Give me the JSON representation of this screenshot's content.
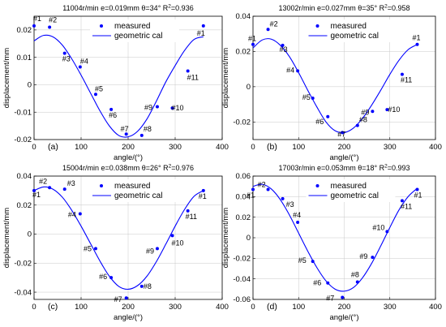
{
  "chart_data": [
    {
      "type": "scatter",
      "title": "11004r/min e=0.019mm θ=34° R",
      "title_sup": "2",
      "title_tail": "=0.936",
      "xlabel": "angle/(°)",
      "ylabel": "displacement/mm",
      "panel_label": "(a)",
      "xlim": [
        0,
        400
      ],
      "ylim": [
        -0.02,
        0.025
      ],
      "xticks": [
        0,
        100,
        200,
        300,
        400
      ],
      "yticks": [
        -0.02,
        -0.01,
        0,
        0.01,
        0.02
      ],
      "ytick_labels": [
        "-0.02",
        "-0.01",
        "0",
        "0.01",
        "0.02"
      ],
      "grid": true,
      "legend": {
        "position": "top-center",
        "entries": [
          "measured",
          "geometric cal"
        ]
      },
      "colors": {
        "series": "#0000ff"
      },
      "series": [
        {
          "name": "measured",
          "kind": "points",
          "labels": [
            "#1",
            "#2",
            "#3",
            "#4",
            "#5",
            "#6",
            "#7",
            "#8",
            "#9",
            "#10",
            "#11",
            "#1"
          ],
          "x": [
            0,
            33,
            65,
            98,
            131,
            164,
            196,
            229,
            262,
            294,
            327,
            360
          ],
          "y": [
            0.0215,
            0.021,
            0.0115,
            0.0065,
            -0.0035,
            -0.009,
            -0.018,
            -0.0185,
            -0.008,
            -0.0085,
            0.005,
            0.0215
          ]
        },
        {
          "name": "geometric cal",
          "kind": "curve",
          "x": [
            0,
            20,
            40,
            60,
            80,
            100,
            120,
            140,
            160,
            180,
            200,
            220,
            240,
            260,
            280,
            300,
            320,
            340,
            360
          ],
          "y": [
            0.016,
            0.018,
            0.0175,
            0.0145,
            0.0095,
            0.0035,
            -0.003,
            -0.0095,
            -0.015,
            -0.0185,
            -0.019,
            -0.017,
            -0.0125,
            -0.006,
            0.001,
            0.007,
            0.0125,
            0.0165,
            0.0175
          ]
        }
      ]
    },
    {
      "type": "scatter",
      "title": "13002r/min e=0.027mm θ=35° R",
      "title_sup": "2",
      "title_tail": "=0.958",
      "xlabel": "angle/(°)",
      "ylabel": "displacement/mm",
      "panel_label": "(b)",
      "xlim": [
        0,
        400
      ],
      "ylim": [
        -0.03,
        0.04
      ],
      "xticks": [
        0,
        100,
        200,
        300,
        400
      ],
      "yticks": [
        -0.02,
        0,
        0.02,
        0.04
      ],
      "ytick_labels": [
        "-0.02",
        "0",
        "0.02",
        "0.04"
      ],
      "grid": true,
      "legend": {
        "position": "top-center",
        "entries": [
          "measured",
          "geometric cal"
        ]
      },
      "colors": {
        "series": "#0000ff"
      },
      "series": [
        {
          "name": "measured",
          "kind": "points",
          "labels": [
            "#1",
            "#2",
            "#3",
            "#4",
            "#5",
            "#6",
            "#7",
            "#8",
            "#9",
            "#10",
            "#11",
            "#1"
          ],
          "x": [
            0,
            33,
            65,
            98,
            131,
            164,
            196,
            229,
            262,
            294,
            327,
            360
          ],
          "y": [
            0.024,
            0.0325,
            0.0235,
            0.009,
            -0.0065,
            -0.017,
            -0.026,
            -0.022,
            -0.014,
            -0.013,
            0.007,
            0.024
          ]
        },
        {
          "name": "geometric cal",
          "kind": "curve",
          "x": [
            0,
            20,
            40,
            60,
            80,
            100,
            120,
            140,
            160,
            180,
            200,
            220,
            240,
            260,
            280,
            300,
            320,
            340,
            360
          ],
          "y": [
            0.022,
            0.0265,
            0.027,
            0.0235,
            0.017,
            0.008,
            -0.002,
            -0.0115,
            -0.02,
            -0.025,
            -0.026,
            -0.0235,
            -0.018,
            -0.0105,
            -0.002,
            0.007,
            0.015,
            0.021,
            0.024
          ]
        }
      ]
    },
    {
      "type": "scatter",
      "title": "15004r/min e=0.038mm θ=26° R",
      "title_sup": "2",
      "title_tail": "=0.976",
      "xlabel": "angle/(°)",
      "ylabel": "displacement/mm",
      "panel_label": "(c)",
      "xlim": [
        0,
        400
      ],
      "ylim": [
        -0.045,
        0.04
      ],
      "xticks": [
        0,
        100,
        200,
        300,
        400
      ],
      "yticks": [
        -0.04,
        -0.02,
        0,
        0.02,
        0.04
      ],
      "ytick_labels": [
        "-0.04",
        "-0.02",
        "0",
        "0.02",
        "0.04"
      ],
      "grid": true,
      "legend": {
        "position": "top-center",
        "entries": [
          "measured",
          "geometric cal"
        ]
      },
      "colors": {
        "series": "#0000ff"
      },
      "series": [
        {
          "name": "measured",
          "kind": "points",
          "labels": [
            "#1",
            "#2",
            "#3",
            "#4",
            "#5",
            "#6",
            "#7",
            "#8",
            "#9",
            "#10",
            "#11",
            "#1"
          ],
          "x": [
            0,
            33,
            65,
            98,
            131,
            164,
            196,
            229,
            262,
            294,
            327,
            360
          ],
          "y": [
            0.03,
            0.032,
            0.031,
            0.014,
            -0.01,
            -0.03,
            -0.044,
            -0.036,
            -0.01,
            -0.001,
            0.016,
            0.03
          ]
        },
        {
          "name": "geometric cal",
          "kind": "curve",
          "x": [
            0,
            20,
            40,
            60,
            80,
            100,
            120,
            140,
            160,
            180,
            200,
            220,
            240,
            260,
            280,
            300,
            320,
            340,
            360
          ],
          "y": [
            0.03,
            0.0325,
            0.031,
            0.0255,
            0.0165,
            0.0055,
            -0.0065,
            -0.0185,
            -0.029,
            -0.036,
            -0.038,
            -0.0355,
            -0.029,
            -0.019,
            -0.007,
            0.0055,
            0.017,
            0.026,
            0.03
          ]
        }
      ]
    },
    {
      "type": "scatter",
      "title": "17003r/min e=0.053mm θ=18° R",
      "title_sup": "2",
      "title_tail": "=0.993",
      "xlabel": "angle/(°)",
      "ylabel": "displacement/mm",
      "panel_label": "(d)",
      "xlim": [
        0,
        400
      ],
      "ylim": [
        -0.06,
        0.06
      ],
      "xticks": [
        0,
        100,
        200,
        300,
        400
      ],
      "yticks": [
        -0.06,
        -0.04,
        -0.02,
        0,
        0.02,
        0.04,
        0.06
      ],
      "ytick_labels": [
        "-0.06",
        "-0.04",
        "-0.02",
        "0",
        "0.02",
        "0.04",
        "0.06"
      ],
      "grid": true,
      "legend": {
        "position": "top-center",
        "entries": [
          "measured",
          "geometric cal"
        ]
      },
      "colors": {
        "series": "#0000ff"
      },
      "series": [
        {
          "name": "measured",
          "kind": "points",
          "labels": [
            "#1",
            "#2",
            "#3",
            "#4",
            "#5",
            "#6",
            "#7",
            "#8",
            "#9",
            "#10",
            "#11",
            "#1"
          ],
          "x": [
            0,
            33,
            65,
            98,
            131,
            164,
            196,
            229,
            262,
            294,
            327,
            360
          ],
          "y": [
            0.047,
            0.047,
            0.038,
            0.015,
            -0.023,
            -0.044,
            -0.058,
            -0.043,
            -0.019,
            0.006,
            0.036,
            0.047
          ]
        },
        {
          "name": "geometric cal",
          "kind": "curve",
          "x": [
            0,
            20,
            40,
            60,
            80,
            100,
            120,
            140,
            160,
            180,
            200,
            220,
            240,
            260,
            280,
            300,
            320,
            340,
            360
          ],
          "y": [
            0.05,
            0.052,
            0.0475,
            0.037,
            0.022,
            0.0045,
            -0.013,
            -0.029,
            -0.042,
            -0.05,
            -0.052,
            -0.0485,
            -0.039,
            -0.025,
            -0.008,
            0.01,
            0.027,
            0.04,
            0.048
          ]
        }
      ]
    }
  ]
}
